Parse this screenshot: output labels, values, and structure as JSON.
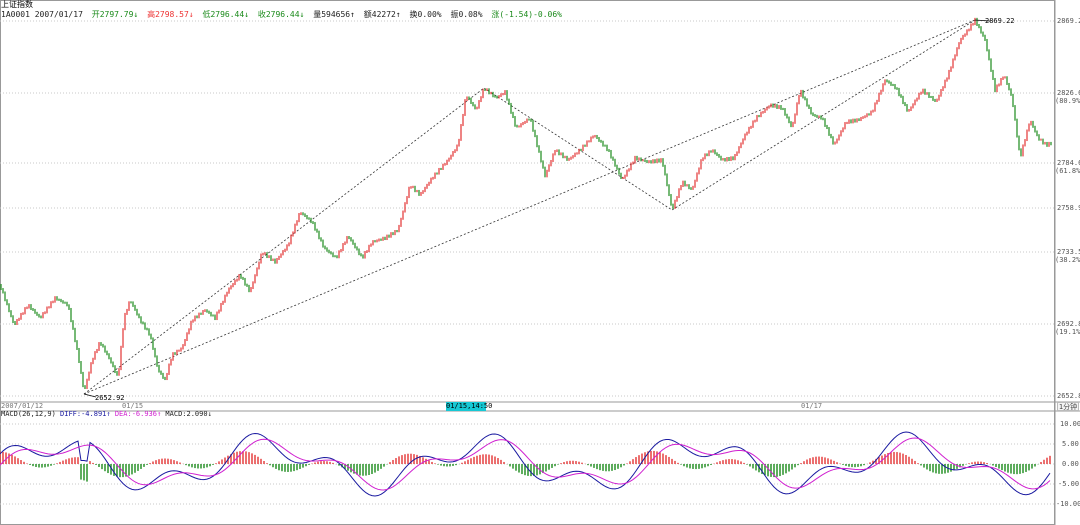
{
  "title": {
    "name": "上证指数",
    "code_date": "1A0001 2007/01/17",
    "open_label": "开",
    "open": "2797.79",
    "open_arrow": "↓",
    "high_label": "高",
    "high": "2798.57",
    "high_arrow": "↓",
    "low_label": "低",
    "low": "2796.44",
    "low_arrow": "↓",
    "close_label": "收",
    "close": "2796.44",
    "close_arrow": "↓",
    "volume_label": "量",
    "volume": "594656",
    "volume_arrow": "↑",
    "amount_label": "额",
    "amount": "42272",
    "amount_arrow": "↑",
    "turnover_label": "换",
    "turnover": "0.00%",
    "amplitude_label": "振",
    "amplitude": "0.08%",
    "change_label": "涨",
    "change": "(-1.54)-0.06%"
  },
  "y_axis": {
    "labels": [
      "2869.2",
      "2826.6",
      "(80.9%)",
      "2784.6",
      "(61.8%)",
      "2758.9",
      "2733.5",
      "(38.2%)",
      "2692.8",
      "(19.1%)",
      "2652.8"
    ]
  },
  "x_axis": {
    "labels": [
      "2007/01/12",
      "01/15",
      "01/17"
    ],
    "cursor": "01/15,14:50",
    "period": "1分钟"
  },
  "annotations": {
    "high_value": "2869.22",
    "low_value": "2652.92"
  },
  "macd": {
    "name": "MACD(26,12,9)",
    "diff_label": "DIFF:",
    "diff": "-4.891",
    "diff_arrow": "↑",
    "dea_label": "DEA:",
    "dea": "-6.936",
    "dea_arrow": "↑",
    "macd_label": "MACD:",
    "macd": "2.090",
    "macd_arrow": "↓",
    "y_labels": [
      "10.00",
      "5.00",
      "0.00",
      "-5.00",
      "-10.00"
    ]
  },
  "colors": {
    "up": "#e33333",
    "down": "#1a8a1a",
    "diff_line": "#1a1aa0",
    "dea_line": "#d020d0"
  }
}
